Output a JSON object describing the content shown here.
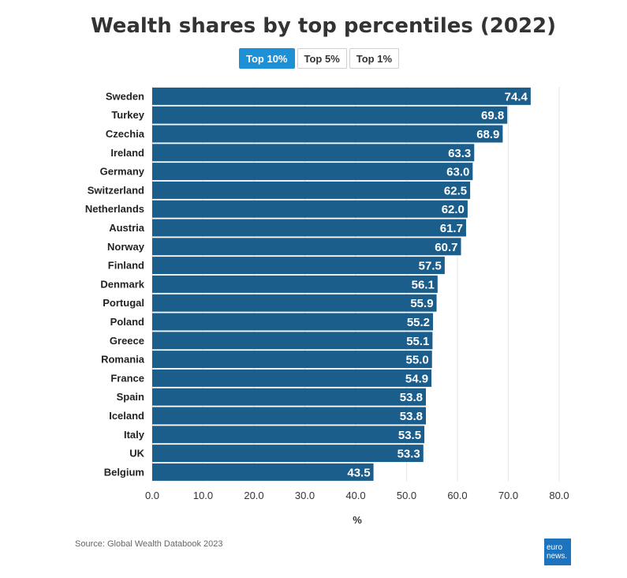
{
  "title": "Wealth shares by top percentiles (2022)",
  "tabs": [
    {
      "label": "Top 10%",
      "active": true
    },
    {
      "label": "Top 5%",
      "active": false
    },
    {
      "label": "Top 1%",
      "active": false
    }
  ],
  "source": "Source: Global Wealth Databook 2023",
  "logo": {
    "line1": "euro",
    "line2": "news."
  },
  "colors": {
    "bar": "#1b5e8c",
    "tab_active": "#1e90d6",
    "grid": "#e6e6e6"
  },
  "chart_data": {
    "type": "bar",
    "orientation": "horizontal",
    "title": "Wealth shares by top percentiles (2022)",
    "xlabel": "%",
    "ylabel": "",
    "xlim": [
      0,
      80
    ],
    "ticks": [
      "0.0",
      "10.0",
      "20.0",
      "30.0",
      "40.0",
      "50.0",
      "60.0",
      "70.0",
      "80.0"
    ],
    "tick_values": [
      0,
      10,
      20,
      30,
      40,
      50,
      60,
      70,
      80
    ],
    "grid": true,
    "categories": [
      "Sweden",
      "Turkey",
      "Czechia",
      "Ireland",
      "Germany",
      "Switzerland",
      "Netherlands",
      "Austria",
      "Norway",
      "Finland",
      "Denmark",
      "Portugal",
      "Poland",
      "Greece",
      "Romania",
      "France",
      "Spain",
      "Iceland",
      "Italy",
      "UK",
      "Belgium"
    ],
    "values": [
      74.4,
      69.8,
      68.9,
      63.3,
      63.0,
      62.5,
      62.0,
      61.7,
      60.7,
      57.5,
      56.1,
      55.9,
      55.2,
      55.1,
      55.0,
      54.9,
      53.8,
      53.8,
      53.5,
      53.3,
      43.5
    ],
    "value_labels": [
      "74.4",
      "69.8",
      "68.9",
      "63.3",
      "63.0",
      "62.5",
      "62.0",
      "61.7",
      "60.7",
      "57.5",
      "56.1",
      "55.9",
      "55.2",
      "55.1",
      "55.0",
      "54.9",
      "53.8",
      "53.8",
      "53.5",
      "53.3",
      "43.5"
    ]
  }
}
